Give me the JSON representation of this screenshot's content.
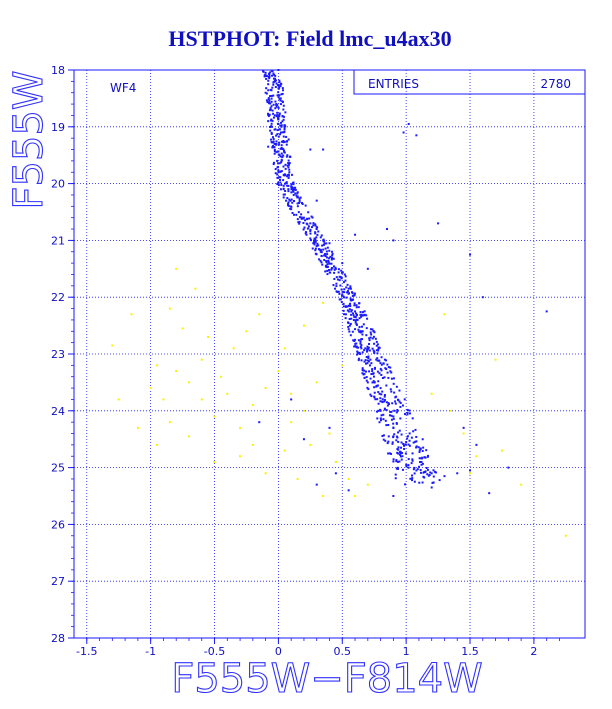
{
  "chart_data": {
    "type": "scatter",
    "title": "HSTPHOT: Field lmc_u4ax30",
    "xlabel": "F555W−F814W",
    "ylabel": "F555W",
    "xlim": [
      -1.6,
      2.4
    ],
    "ylim": [
      28,
      18
    ],
    "y_inverted": true,
    "grid": true,
    "grid_style": "dotted",
    "x_ticks": [
      -1.5,
      -1,
      -0.5,
      0,
      0.5,
      1,
      1.5,
      2
    ],
    "x_tick_labels": [
      "-1.5",
      "-1",
      "-0.5",
      "0",
      "0.5",
      "1",
      "1.5",
      "2"
    ],
    "y_ticks": [
      18,
      19,
      20,
      21,
      22,
      23,
      24,
      25,
      26,
      27,
      28
    ],
    "y_tick_labels": [
      "18",
      "19",
      "20",
      "21",
      "22",
      "23",
      "24",
      "25",
      "26",
      "27",
      "28"
    ],
    "field_label": "WF4",
    "stats_box": {
      "label": "ENTRIES",
      "value": "2780",
      "placement": "top-right"
    },
    "series": [
      {
        "color": "#1a1aff",
        "points": [
          [
            -0.12,
            18.02
          ],
          [
            -0.1,
            18.05
          ],
          [
            0.0,
            18.0
          ],
          [
            -0.05,
            18.1
          ],
          [
            -0.08,
            18.25
          ],
          [
            -0.02,
            18.3
          ],
          [
            -0.06,
            18.35
          ],
          [
            -0.04,
            18.45
          ],
          [
            -0.1,
            18.4
          ],
          [
            0.02,
            18.6
          ],
          [
            -0.06,
            18.7
          ],
          [
            -0.01,
            18.8
          ],
          [
            -0.08,
            18.9
          ],
          [
            0.0,
            18.95
          ],
          [
            -0.03,
            19.05
          ],
          [
            0.02,
            19.1
          ],
          [
            -0.05,
            19.0
          ],
          [
            0.05,
            18.98
          ],
          [
            -0.08,
            19.35
          ],
          [
            0.25,
            19.4
          ],
          [
            0.07,
            19.5
          ],
          [
            -0.01,
            19.6
          ],
          [
            0.04,
            19.7
          ],
          [
            0.0,
            19.8
          ],
          [
            0.08,
            19.9
          ],
          [
            0.1,
            20.05
          ],
          [
            0.02,
            20.1
          ],
          [
            0.12,
            20.2
          ],
          [
            0.06,
            20.3
          ],
          [
            0.15,
            20.35
          ],
          [
            0.1,
            20.45
          ],
          [
            0.2,
            20.6
          ],
          [
            0.14,
            20.55
          ],
          [
            0.25,
            20.7
          ],
          [
            0.3,
            20.8
          ],
          [
            0.22,
            20.9
          ],
          [
            0.35,
            21.0
          ],
          [
            0.3,
            21.1
          ],
          [
            0.42,
            21.2
          ],
          [
            0.38,
            21.3
          ],
          [
            0.5,
            21.4
          ],
          [
            0.45,
            21.5
          ],
          [
            0.52,
            21.6
          ],
          [
            0.48,
            21.7
          ],
          [
            0.55,
            21.85
          ],
          [
            0.5,
            21.95
          ],
          [
            0.58,
            22.05
          ],
          [
            0.55,
            22.15
          ],
          [
            0.6,
            22.25
          ],
          [
            0.62,
            22.4
          ],
          [
            0.56,
            22.5
          ],
          [
            0.66,
            22.6
          ],
          [
            0.6,
            22.75
          ],
          [
            0.68,
            22.9
          ],
          [
            0.64,
            23.0
          ],
          [
            0.72,
            23.1
          ],
          [
            0.66,
            23.25
          ],
          [
            0.74,
            23.35
          ],
          [
            0.7,
            23.5
          ],
          [
            0.8,
            23.6
          ],
          [
            0.75,
            23.75
          ],
          [
            0.85,
            23.85
          ],
          [
            0.8,
            24.0
          ],
          [
            0.9,
            24.1
          ],
          [
            0.86,
            24.25
          ],
          [
            0.95,
            24.35
          ],
          [
            0.9,
            24.45
          ],
          [
            1.0,
            24.55
          ],
          [
            0.96,
            24.65
          ],
          [
            1.05,
            24.75
          ],
          [
            1.02,
            24.85
          ],
          [
            1.12,
            24.95
          ],
          [
            1.08,
            25.05
          ],
          [
            1.2,
            25.1
          ],
          [
            1.3,
            25.15
          ],
          [
            1.4,
            25.1
          ],
          [
            1.5,
            25.05
          ],
          [
            0.4,
            21.05
          ],
          [
            0.3,
            20.3
          ],
          [
            0.6,
            20.9
          ],
          [
            1.5,
            21.25
          ],
          [
            1.6,
            22.0
          ],
          [
            2.1,
            22.25
          ],
          [
            1.45,
            24.3
          ],
          [
            1.55,
            24.6
          ],
          [
            1.8,
            25.0
          ],
          [
            1.65,
            25.45
          ],
          [
            1.02,
            18.95
          ],
          [
            0.98,
            19.1
          ],
          [
            1.08,
            19.15
          ],
          [
            0.7,
            21.5
          ],
          [
            0.45,
            25.1
          ],
          [
            0.3,
            25.3
          ],
          [
            0.55,
            25.4
          ],
          [
            0.9,
            25.5
          ],
          [
            1.2,
            25.35
          ],
          [
            0.35,
            19.4
          ],
          [
            0.85,
            20.8
          ],
          [
            1.25,
            20.7
          ],
          [
            0.9,
            21.0
          ],
          [
            -0.15,
            24.2
          ],
          [
            0.1,
            23.8
          ],
          [
            0.2,
            24.5
          ],
          [
            0.4,
            24.3
          ]
        ]
      },
      {
        "color": "#ffee00",
        "points": [
          [
            -1.3,
            22.85
          ],
          [
            -1.15,
            22.3
          ],
          [
            -0.8,
            21.5
          ],
          [
            -0.65,
            21.85
          ],
          [
            -0.85,
            22.2
          ],
          [
            -0.75,
            22.55
          ],
          [
            -0.95,
            23.2
          ],
          [
            -1.0,
            23.6
          ],
          [
            -0.9,
            23.8
          ],
          [
            -0.8,
            23.3
          ],
          [
            -0.7,
            23.5
          ],
          [
            -0.6,
            23.1
          ],
          [
            -0.55,
            22.7
          ],
          [
            -0.45,
            23.4
          ],
          [
            -0.4,
            23.7
          ],
          [
            -0.5,
            24.1
          ],
          [
            -0.3,
            24.3
          ],
          [
            -0.2,
            23.9
          ],
          [
            -0.1,
            23.6
          ],
          [
            0.0,
            23.3
          ],
          [
            0.1,
            23.7
          ],
          [
            0.2,
            24.0
          ],
          [
            0.3,
            23.5
          ],
          [
            0.4,
            24.4
          ],
          [
            -0.35,
            22.9
          ],
          [
            -0.25,
            22.6
          ],
          [
            -1.25,
            23.8
          ],
          [
            -1.1,
            24.3
          ],
          [
            -0.95,
            24.6
          ],
          [
            -0.85,
            24.2
          ],
          [
            -0.7,
            24.45
          ],
          [
            -0.5,
            24.9
          ],
          [
            -0.3,
            24.8
          ],
          [
            -0.1,
            25.1
          ],
          [
            0.05,
            24.7
          ],
          [
            0.15,
            25.2
          ],
          [
            0.25,
            24.6
          ],
          [
            0.35,
            25.5
          ],
          [
            0.45,
            24.9
          ],
          [
            0.55,
            25.2
          ],
          [
            0.6,
            25.5
          ],
          [
            0.7,
            25.3
          ],
          [
            0.35,
            22.1
          ],
          [
            0.2,
            22.5
          ],
          [
            0.05,
            22.9
          ],
          [
            0.5,
            23.2
          ],
          [
            1.2,
            23.7
          ],
          [
            1.35,
            24.0
          ],
          [
            1.45,
            24.4
          ],
          [
            1.55,
            24.8
          ],
          [
            1.5,
            25.1
          ],
          [
            1.75,
            24.7
          ],
          [
            1.9,
            25.3
          ],
          [
            2.25,
            26.2
          ],
          [
            1.3,
            22.3
          ],
          [
            1.7,
            23.1
          ],
          [
            -0.6,
            23.8
          ],
          [
            -0.2,
            24.6
          ],
          [
            0.1,
            24.2
          ],
          [
            -0.15,
            22.3
          ]
        ]
      }
    ]
  }
}
